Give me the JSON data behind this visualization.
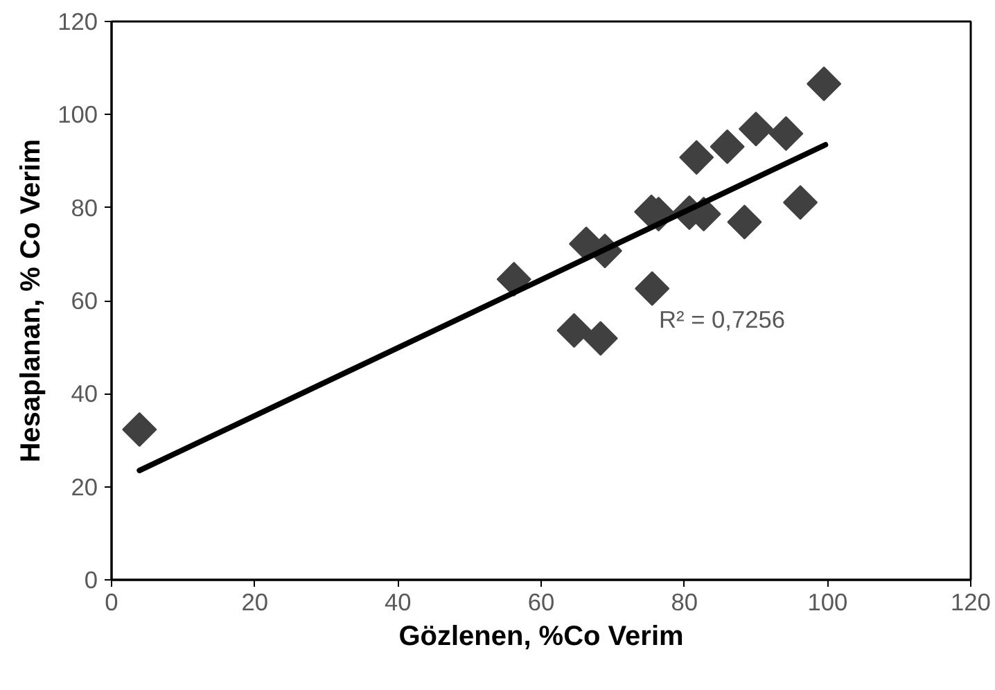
{
  "chart_data": {
    "type": "scatter",
    "xlabel": "Gözlenen, %Co Verim",
    "ylabel": "Hesaplanan, % Co Verim",
    "xlim": [
      0,
      120
    ],
    "ylim": [
      0,
      120
    ],
    "xticks": [
      0,
      20,
      40,
      60,
      80,
      100,
      120
    ],
    "yticks": [
      0,
      20,
      40,
      60,
      80,
      100,
      120
    ],
    "grid": false,
    "annotations": [
      "R² = 0,7256"
    ],
    "series": [
      {
        "marker": "diamond",
        "color": "#404040",
        "x": [
          3.9,
          56.2,
          64.6,
          66.3,
          68.3,
          68.9,
          75.4,
          75.5,
          76.4,
          80.7,
          81.7,
          82.7,
          86.0,
          88.4,
          90.0,
          94.2,
          96.2,
          99.5
        ],
        "values": [
          32.3,
          64.6,
          53.6,
          72.2,
          51.9,
          70.7,
          79.1,
          62.6,
          78.6,
          78.9,
          90.8,
          78.6,
          93.1,
          76.9,
          96.9,
          95.9,
          81.1,
          106.6
        ]
      },
      {
        "type": "line",
        "color": "#000000",
        "x": [
          3.9,
          99.7
        ],
        "values": [
          23.5,
          93.5
        ]
      }
    ]
  }
}
